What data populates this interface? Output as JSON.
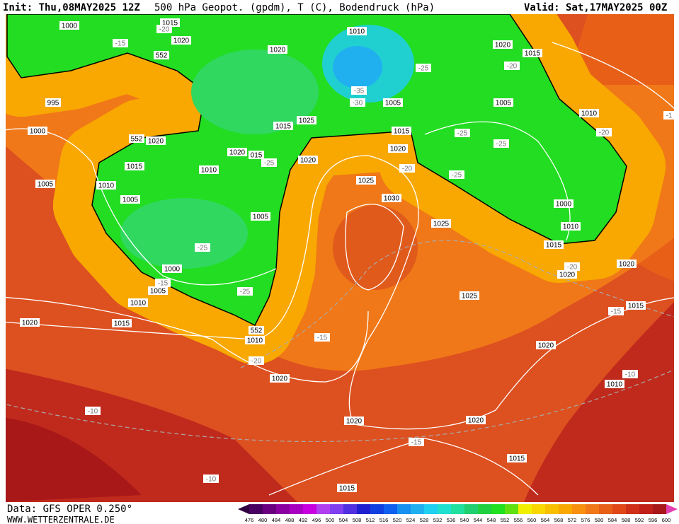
{
  "header": {
    "init": "Init: Thu,08MAY2025 12Z",
    "title": "500 hPa Geopot. (gpdm), T (C), Bodendruck (hPa)",
    "valid": "Valid: Sat,17MAY2025 00Z"
  },
  "footer": {
    "data": "Data: GFS OPER 0.250°",
    "site": "WWW.WETTERZENTRALE.DE"
  },
  "map": {
    "pressure_labels": [
      "1000",
      "1015",
      "1020",
      "552",
      "995",
      "1000",
      "552",
      "1020",
      "1015",
      "1010",
      "1005",
      "1005",
      "1010",
      "1020",
      "015",
      "1020",
      "1015",
      "1025",
      "1020",
      "1010",
      "1005",
      "1015",
      "1020",
      "1025",
      "1030",
      "1025",
      "1005",
      "1000",
      "1005",
      "1010",
      "1015",
      "1020",
      "1010",
      "1020",
      "1025",
      "1020",
      "1015",
      "1005",
      "1010",
      "1000",
      "1010",
      "1015",
      "1020",
      "1020",
      "1015",
      "1020",
      "1010",
      "1020",
      "1020",
      "1015",
      "1015",
      "552"
    ],
    "temperature_labels": [
      "-15",
      "-20",
      "-25",
      "-20",
      "-35",
      "-30",
      "-25",
      "-25",
      "-20",
      "-25",
      "-25",
      "-25",
      "-25",
      "-15",
      "-15",
      "-20",
      "-15",
      "-10",
      "-10",
      "-15",
      "-10",
      "-20",
      "-20",
      "-1"
    ]
  },
  "colorbar": {
    "labels": [
      476,
      480,
      484,
      488,
      492,
      496,
      500,
      504,
      508,
      512,
      516,
      520,
      524,
      528,
      532,
      536,
      540,
      544,
      548,
      552,
      556,
      560,
      564,
      568,
      572,
      576,
      580,
      584,
      588,
      592,
      596,
      600
    ],
    "colors": [
      "#4a0060",
      "#6a0080",
      "#8a00a0",
      "#a800c0",
      "#c800e0",
      "#b040f0",
      "#8040f0",
      "#5030e0",
      "#2020d0",
      "#1040e0",
      "#1060f0",
      "#1890f0",
      "#20b0f0",
      "#20d0f0",
      "#20e0d0",
      "#20e0a0",
      "#20d070",
      "#20d040",
      "#20e020",
      "#60e010",
      "#f0f000",
      "#f8d800",
      "#f8c000",
      "#f8a800",
      "#f89010",
      "#f07818",
      "#e86018",
      "#e04818",
      "#d03018",
      "#c02018",
      "#a81818"
    ],
    "low_color": "#300040",
    "high_color": "#e040b0"
  }
}
